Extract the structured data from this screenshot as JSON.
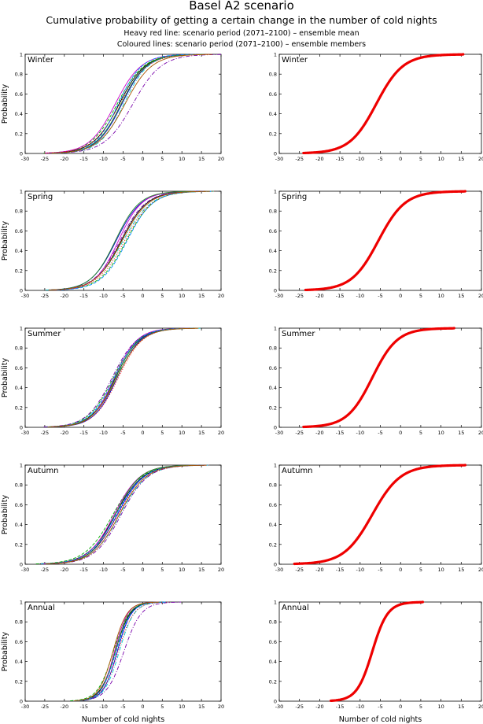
{
  "header": {
    "title": "Basel A2 scenario",
    "subtitle": "Cumulative probability of getting a certain change in the number of cold nights",
    "legend_line1": "Heavy red line: scenario period (2071–2100) – ensemble mean",
    "legend_line2": "Coloured lines: scenario period (2071–2100) – ensemble members"
  },
  "axes": {
    "ylabel": "Probability",
    "xlabel": "Number of cold nights",
    "xlim": [
      -30,
      20
    ],
    "ylim": [
      0,
      1
    ],
    "xticks": [
      -30,
      -25,
      -20,
      -15,
      -10,
      -5,
      0,
      5,
      10,
      15,
      20
    ],
    "yticks": [
      0,
      0.2,
      0.4,
      0.6,
      0.8,
      1
    ],
    "ytick_labels": [
      "0",
      "0.2",
      "0.4",
      "0.6",
      "0.8",
      "1"
    ]
  },
  "colors": {
    "mean": "#ee0000",
    "members": [
      "#000000",
      "#0000cc",
      "#00aa00",
      "#00cccc",
      "#cc00cc",
      "#ff0000",
      "#7700aa",
      "#228822",
      "#0088ff",
      "#aa5500"
    ]
  },
  "chart_data": [
    {
      "type": "line",
      "season": "Winter",
      "mean": {
        "mu": -6.0,
        "s": 3.3
      },
      "members": [
        {
          "mu": -6.0,
          "s": 3.3,
          "style": "solid"
        },
        {
          "mu": -5.3,
          "s": 3.2,
          "style": "solid"
        },
        {
          "mu": -6.5,
          "s": 3.4,
          "style": "dash"
        },
        {
          "mu": -4.8,
          "s": 3.1,
          "style": "dashdot"
        },
        {
          "mu": -7.0,
          "s": 3.3,
          "style": "solid"
        },
        {
          "mu": -5.8,
          "s": 3.5,
          "style": "dot"
        },
        {
          "mu": -2.5,
          "s": 3.6,
          "style": "dashdot"
        },
        {
          "mu": -5.5,
          "s": 3.2,
          "style": "solid"
        },
        {
          "mu": -6.2,
          "s": 3.0,
          "style": "dash"
        },
        {
          "mu": -4.5,
          "s": 3.4,
          "style": "solid"
        }
      ]
    },
    {
      "type": "line",
      "season": "Spring",
      "mean": {
        "mu": -5.5,
        "s": 3.3
      },
      "members": [
        {
          "mu": -5.5,
          "s": 3.3,
          "style": "solid"
        },
        {
          "mu": -6.8,
          "s": 3.2,
          "style": "solid"
        },
        {
          "mu": -4.2,
          "s": 3.4,
          "style": "dash"
        },
        {
          "mu": -5.0,
          "s": 3.6,
          "style": "dashdot"
        },
        {
          "mu": -6.2,
          "s": 3.0,
          "style": "solid"
        },
        {
          "mu": -4.6,
          "s": 3.5,
          "style": "dot"
        },
        {
          "mu": -5.8,
          "s": 3.3,
          "style": "dashdot"
        },
        {
          "mu": -7.0,
          "s": 3.1,
          "style": "solid"
        },
        {
          "mu": -4.0,
          "s": 3.3,
          "style": "dash"
        },
        {
          "mu": -5.3,
          "s": 3.4,
          "style": "solid"
        }
      ]
    },
    {
      "type": "line",
      "season": "Summer",
      "mean": {
        "mu": -7.0,
        "s": 3.1
      },
      "members": [
        {
          "mu": -7.0,
          "s": 3.1,
          "style": "solid"
        },
        {
          "mu": -6.5,
          "s": 3.0,
          "style": "solid"
        },
        {
          "mu": -7.5,
          "s": 3.2,
          "style": "dash"
        },
        {
          "mu": -6.8,
          "s": 3.3,
          "style": "dashdot"
        },
        {
          "mu": -7.2,
          "s": 2.9,
          "style": "solid"
        },
        {
          "mu": -6.2,
          "s": 3.1,
          "style": "dot"
        },
        {
          "mu": -7.8,
          "s": 3.2,
          "style": "dashdot"
        },
        {
          "mu": -6.9,
          "s": 3.0,
          "style": "solid"
        },
        {
          "mu": -7.3,
          "s": 3.1,
          "style": "dash"
        },
        {
          "mu": -6.6,
          "s": 3.2,
          "style": "solid"
        }
      ]
    },
    {
      "type": "line",
      "season": "Autumn",
      "mean": {
        "mu": -7.0,
        "s": 3.5
      },
      "members": [
        {
          "mu": -7.0,
          "s": 3.5,
          "style": "solid"
        },
        {
          "mu": -6.5,
          "s": 3.4,
          "style": "solid"
        },
        {
          "mu": -7.6,
          "s": 3.6,
          "style": "dash"
        },
        {
          "mu": -5.8,
          "s": 3.5,
          "style": "dashdot"
        },
        {
          "mu": -7.3,
          "s": 3.3,
          "style": "solid"
        },
        {
          "mu": -6.3,
          "s": 3.6,
          "style": "dot"
        },
        {
          "mu": -5.5,
          "s": 3.4,
          "style": "dashdot"
        },
        {
          "mu": -7.0,
          "s": 3.2,
          "style": "solid"
        },
        {
          "mu": -6.8,
          "s": 3.5,
          "style": "dash"
        },
        {
          "mu": -6.0,
          "s": 3.4,
          "style": "solid"
        }
      ]
    },
    {
      "type": "line",
      "season": "Annual",
      "mean": {
        "mu": -7.0,
        "s": 1.9
      },
      "members": [
        {
          "mu": -7.0,
          "s": 1.9,
          "style": "solid"
        },
        {
          "mu": -6.5,
          "s": 1.8,
          "style": "solid"
        },
        {
          "mu": -7.5,
          "s": 2.0,
          "style": "dash"
        },
        {
          "mu": -6.0,
          "s": 1.9,
          "style": "dashdot"
        },
        {
          "mu": -7.2,
          "s": 1.7,
          "style": "solid"
        },
        {
          "mu": -6.3,
          "s": 2.0,
          "style": "dot"
        },
        {
          "mu": -4.8,
          "s": 2.2,
          "style": "dashdot"
        },
        {
          "mu": -7.0,
          "s": 1.8,
          "style": "solid"
        },
        {
          "mu": -6.8,
          "s": 1.9,
          "style": "dash"
        },
        {
          "mu": -7.6,
          "s": 1.8,
          "style": "solid"
        }
      ]
    }
  ]
}
